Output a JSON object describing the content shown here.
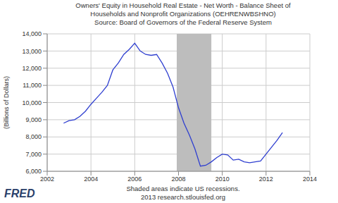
{
  "chart_data": {
    "type": "line",
    "title": "Owners' Equity in Household Real Estate - Net Worth - Balance Sheet of Households and Nonprofit Organizations (OEHRENWBSHNO)",
    "subtitle": "Source: Board of Governors of the Federal Reserve System",
    "y_label": "(Billions of Dollars)",
    "note": "Shaded areas indicate US recessions.",
    "source": "2013 research.stlouisfed.org",
    "logo": "FRED",
    "x": [
      2002.75,
      2003.0,
      2003.25,
      2003.5,
      2003.75,
      2004.0,
      2004.25,
      2004.5,
      2004.75,
      2005.0,
      2005.25,
      2005.5,
      2005.75,
      2006.0,
      2006.25,
      2006.5,
      2006.75,
      2007.0,
      2007.25,
      2007.5,
      2007.75,
      2008.0,
      2008.25,
      2008.5,
      2008.75,
      2009.0,
      2009.25,
      2009.5,
      2009.75,
      2010.0,
      2010.25,
      2010.5,
      2010.75,
      2011.0,
      2011.25,
      2011.5,
      2011.75,
      2012.0,
      2012.25,
      2012.5,
      2012.75
    ],
    "values": [
      8800,
      8950,
      9000,
      9200,
      9500,
      9900,
      10250,
      10600,
      11000,
      11900,
      12300,
      12800,
      13100,
      13450,
      13000,
      12800,
      12750,
      12800,
      12300,
      11700,
      10900,
      9700,
      8800,
      8100,
      7300,
      6300,
      6350,
      6550,
      6800,
      7000,
      6950,
      6650,
      6700,
      6550,
      6500,
      6550,
      6600,
      7000,
      7400,
      7800,
      8250
    ],
    "color": "#2f3fd0",
    "shaded": [
      {
        "x0": 2007.92,
        "x1": 2009.5
      }
    ],
    "xlim": [
      2002,
      2014
    ],
    "xticks": [
      2002,
      2004,
      2006,
      2008,
      2010,
      2012,
      2014
    ],
    "ylim": [
      6000,
      14000
    ],
    "yticks": [
      {
        "value": 6000,
        "label": "6,000"
      },
      {
        "value": 7000,
        "label": "7,000"
      },
      {
        "value": 8000,
        "label": "8,000"
      },
      {
        "value": 9000,
        "label": "9,000"
      },
      {
        "value": 10000,
        "label": "10,000"
      },
      {
        "value": 11000,
        "label": "11,000"
      },
      {
        "value": 12000,
        "label": "12,000"
      },
      {
        "value": 13000,
        "label": "13,000"
      },
      {
        "value": 14000,
        "label": "14,000"
      }
    ],
    "grid": true
  }
}
